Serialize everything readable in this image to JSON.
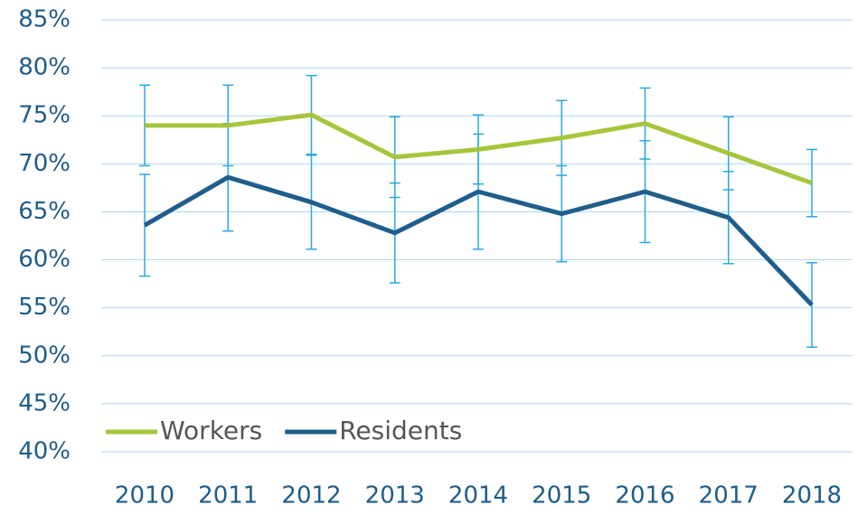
{
  "chart_data": {
    "type": "line",
    "categories": [
      "2010",
      "2011",
      "2012",
      "2013",
      "2014",
      "2015",
      "2016",
      "2017",
      "2018"
    ],
    "series": [
      {
        "name": "Workers",
        "color": "#a5c63b",
        "error_color": "#29a8e0",
        "values": [
          74.0,
          74.0,
          75.1,
          70.7,
          71.5,
          72.7,
          74.2,
          71.1,
          68.0
        ],
        "errors": [
          4.2,
          4.2,
          4.1,
          4.2,
          3.6,
          3.9,
          3.7,
          3.8,
          3.5
        ]
      },
      {
        "name": "Residents",
        "color": "#1f5e8c",
        "error_color": "#29a8e0",
        "values": [
          63.6,
          68.6,
          66.0,
          62.8,
          67.1,
          64.8,
          67.1,
          64.4,
          55.3
        ],
        "errors": [
          5.3,
          5.6,
          4.9,
          5.2,
          6.0,
          5.0,
          5.3,
          4.8,
          4.4
        ]
      }
    ],
    "ylim": [
      40,
      85
    ],
    "yticks": [
      {
        "value": 40,
        "label": "40%"
      },
      {
        "value": 45,
        "label": "45%"
      },
      {
        "value": 50,
        "label": "50%"
      },
      {
        "value": 55,
        "label": "55%"
      },
      {
        "value": 60,
        "label": "60%"
      },
      {
        "value": 65,
        "label": "65%"
      },
      {
        "value": 70,
        "label": "70%"
      },
      {
        "value": 75,
        "label": "75%"
      },
      {
        "value": 80,
        "label": "80%"
      },
      {
        "value": 85,
        "label": "85%"
      }
    ],
    "grid": true,
    "legend": "lower left"
  }
}
